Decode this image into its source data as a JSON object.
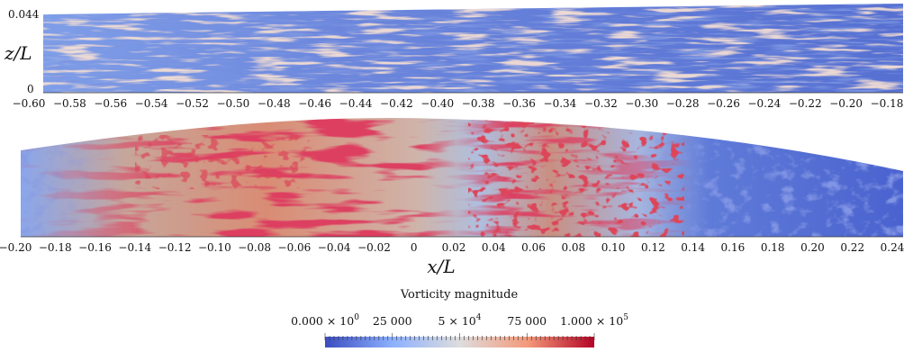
{
  "top_panel": {
    "y_axis_label": "z/L",
    "y_ticks": [
      "0.044",
      "0"
    ],
    "x_ticks": [
      "−0.60",
      "−0.58",
      "−0.56",
      "−0.54",
      "−0.52",
      "−0.50",
      "−0.48",
      "−0.46",
      "−0.44",
      "−0.42",
      "−0.40",
      "−0.38",
      "−0.36",
      "−0.34",
      "−0.32",
      "−0.30",
      "−0.28",
      "−0.26",
      "−0.24",
      "−0.22",
      "−0.20",
      "−0.18"
    ]
  },
  "bottom_panel": {
    "x_ticks": [
      "−0.20",
      "−0.18",
      "−0.16",
      "−0.14",
      "−0.12",
      "−0.10",
      "−0.08",
      "−0.06",
      "−0.04",
      "−0.02",
      "0",
      "0.02",
      "0.04",
      "0.06",
      "0.08",
      "0.10",
      "0.12",
      "0.14",
      "0.16",
      "0.18",
      "0.20",
      "0.22",
      "0.24"
    ],
    "x_axis_label": "x/L"
  },
  "colorbar": {
    "title": "Vorticity magnitude",
    "labels": [
      {
        "mantissa": "0.000 × 10",
        "exp": "0"
      },
      {
        "mantissa": "25 000",
        "exp": ""
      },
      {
        "mantissa": "5 × 10",
        "exp": "4"
      },
      {
        "mantissa": "75 000",
        "exp": ""
      },
      {
        "mantissa": "1.000 × 10",
        "exp": "5"
      }
    ],
    "colors": [
      "#3b4cc0",
      "#8db0fe",
      "#dddddd",
      "#f49a7b",
      "#b40426"
    ]
  }
}
